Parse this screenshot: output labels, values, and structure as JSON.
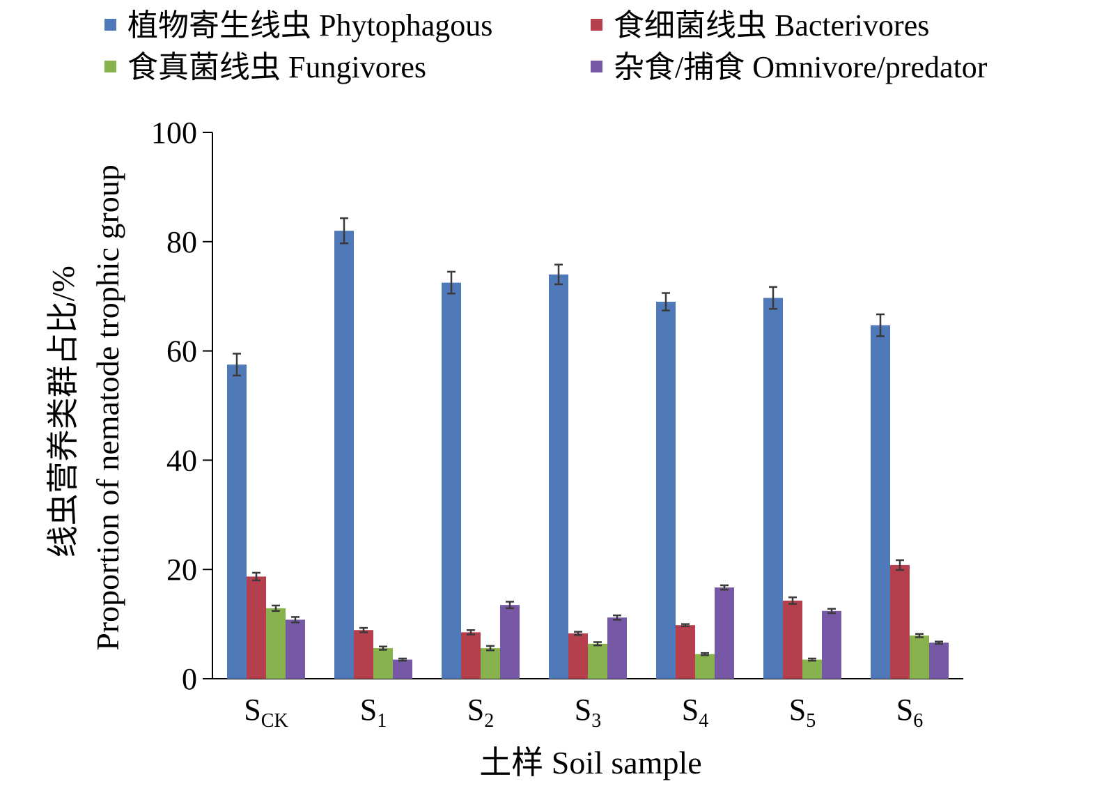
{
  "chart_data": {
    "type": "bar",
    "categories": [
      {
        "main": "S",
        "sub": "CK"
      },
      {
        "main": "S",
        "sub": "1"
      },
      {
        "main": "S",
        "sub": "2"
      },
      {
        "main": "S",
        "sub": "3"
      },
      {
        "main": "S",
        "sub": "4"
      },
      {
        "main": "S",
        "sub": "5"
      },
      {
        "main": "S",
        "sub": "6"
      }
    ],
    "series": [
      {
        "name": "植物寄生线虫 Phytophagous",
        "color": "#4f79b8",
        "values": [
          57.5,
          82.0,
          72.5,
          74.0,
          69.0,
          69.7,
          64.7
        ],
        "errors": [
          2.0,
          2.3,
          2.0,
          1.8,
          1.6,
          2.0,
          2.0
        ]
      },
      {
        "name": "食细菌线虫 Bacterivores",
        "color": "#b63f4d",
        "values": [
          18.7,
          8.9,
          8.5,
          8.3,
          9.8,
          14.3,
          20.8
        ],
        "errors": [
          0.7,
          0.4,
          0.4,
          0.3,
          0.2,
          0.6,
          0.9
        ]
      },
      {
        "name": "食真菌线虫 Fungivores",
        "color": "#88b24d",
        "values": [
          12.9,
          5.6,
          5.6,
          6.4,
          4.5,
          3.5,
          7.9
        ],
        "errors": [
          0.5,
          0.3,
          0.4,
          0.3,
          0.2,
          0.2,
          0.3
        ]
      },
      {
        "name": "杂食/捕食 Omnivore/predator",
        "color": "#7658a5",
        "values": [
          10.8,
          3.5,
          13.5,
          11.2,
          16.7,
          12.4,
          6.6
        ],
        "errors": [
          0.5,
          0.2,
          0.6,
          0.4,
          0.4,
          0.4,
          0.2
        ]
      }
    ],
    "yticks": [
      "0",
      "20",
      "40",
      "60",
      "80",
      "100"
    ],
    "ylim": [
      0,
      100
    ],
    "ylabel_cn": "线虫营养类群占比/%",
    "ylabel_en": "Proportion of nematode trophic group",
    "xlabel": "土样 Soil sample",
    "legend_position": "top"
  }
}
